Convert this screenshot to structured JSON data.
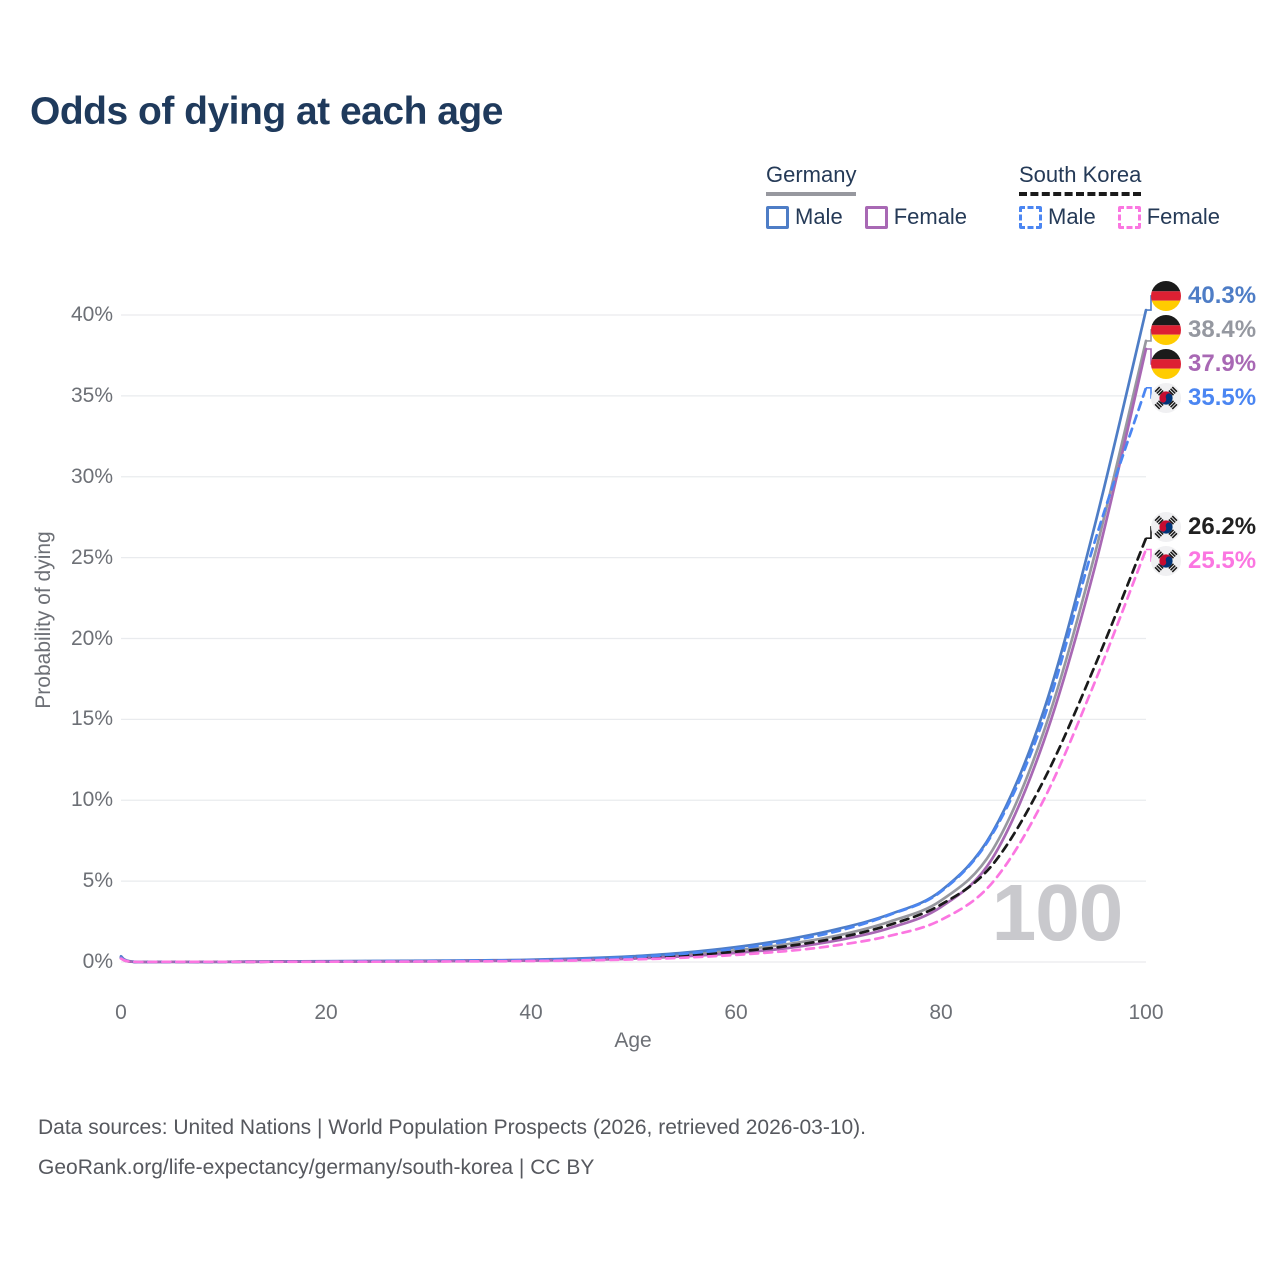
{
  "title": "Odds of dying at each age",
  "legend": {
    "groups": [
      {
        "label": "Germany",
        "line_style": "solid",
        "line_color": "#97989f",
        "items": [
          {
            "label": "Male",
            "color": "#4e7dc6",
            "dashed": false
          },
          {
            "label": "Female",
            "color": "#a868b4",
            "dashed": false
          }
        ]
      },
      {
        "label": "South Korea",
        "line_style": "dashed",
        "line_color": "#1a1a1a",
        "items": [
          {
            "label": "Male",
            "color": "#4b86f2",
            "dashed": true
          },
          {
            "label": "Female",
            "color": "#fb76e1",
            "dashed": true
          }
        ]
      }
    ]
  },
  "chart_data": {
    "type": "line",
    "title": "Odds of dying at each age",
    "xlabel": "Age",
    "ylabel": "Probability of dying",
    "xlim": [
      0,
      100
    ],
    "ylim": [
      0,
      41
    ],
    "grid": "horizontal",
    "legend_position": "top-right",
    "watermark": "100",
    "x_ticks": [
      {
        "value": 0,
        "label": "0"
      },
      {
        "value": 20,
        "label": "20"
      },
      {
        "value": 40,
        "label": "40"
      },
      {
        "value": 60,
        "label": "60"
      },
      {
        "value": 80,
        "label": "80"
      },
      {
        "value": 100,
        "label": "100"
      }
    ],
    "y_ticks": [
      {
        "value": 0,
        "label": "0%"
      },
      {
        "value": 5,
        "label": "5%"
      },
      {
        "value": 10,
        "label": "10%"
      },
      {
        "value": 15,
        "label": "15%"
      },
      {
        "value": 20,
        "label": "20%"
      },
      {
        "value": 25,
        "label": "25%"
      },
      {
        "value": 30,
        "label": "30%"
      },
      {
        "value": 35,
        "label": "35%"
      },
      {
        "value": 40,
        "label": "40%"
      }
    ],
    "x": [
      0,
      1,
      5,
      10,
      15,
      20,
      25,
      30,
      35,
      40,
      45,
      50,
      55,
      60,
      65,
      70,
      75,
      80,
      85,
      90,
      95,
      100
    ],
    "series": [
      {
        "name": "Germany",
        "color": "#97989f",
        "dashed": false,
        "flag_icon": "flag-germany-icon",
        "end_label": "38.4%",
        "end_label_color": "#9598a0",
        "values": [
          0.31,
          0.02,
          0.01,
          0.01,
          0.02,
          0.04,
          0.05,
          0.06,
          0.08,
          0.11,
          0.17,
          0.28,
          0.46,
          0.73,
          1.1,
          1.65,
          2.5,
          3.8,
          6.9,
          14.2,
          25.2,
          38.4
        ]
      },
      {
        "name": "Germany Male",
        "color": "#4e7dc6",
        "dashed": false,
        "flag_icon": "flag-germany-icon",
        "end_label": "40.3%",
        "end_label_color": "#4e7dc6",
        "values": [
          0.35,
          0.03,
          0.01,
          0.01,
          0.03,
          0.05,
          0.06,
          0.08,
          0.1,
          0.14,
          0.22,
          0.36,
          0.58,
          0.92,
          1.4,
          2.05,
          2.95,
          4.4,
          8.0,
          15.5,
          27.0,
          40.3
        ]
      },
      {
        "name": "Germany Female",
        "color": "#a868b4",
        "dashed": false,
        "flag_icon": "flag-germany-icon",
        "end_label": "37.9%",
        "end_label_color": "#a868b4",
        "values": [
          0.28,
          0.02,
          0.01,
          0.01,
          0.02,
          0.02,
          0.03,
          0.04,
          0.06,
          0.08,
          0.13,
          0.21,
          0.35,
          0.56,
          0.86,
          1.35,
          2.1,
          3.4,
          6.4,
          13.6,
          24.4,
          37.9
        ]
      },
      {
        "name": "South Korea",
        "color": "#1a1a1a",
        "dashed": true,
        "flag_icon": "flag-south-korea-icon",
        "end_label": "26.2%",
        "end_label_color": "#212121",
        "values": [
          0.24,
          0.02,
          0.01,
          0.01,
          0.02,
          0.03,
          0.04,
          0.05,
          0.06,
          0.09,
          0.14,
          0.24,
          0.41,
          0.64,
          0.98,
          1.5,
          2.3,
          3.55,
          6.0,
          11.2,
          18.3,
          26.2
        ]
      },
      {
        "name": "South Korea Male",
        "color": "#4b86f2",
        "dashed": true,
        "flag_icon": "flag-south-korea-icon",
        "end_label": "35.5%",
        "end_label_color": "#4b86f2",
        "values": [
          0.26,
          0.02,
          0.01,
          0.01,
          0.02,
          0.03,
          0.05,
          0.06,
          0.08,
          0.11,
          0.17,
          0.3,
          0.52,
          0.82,
          1.28,
          1.92,
          2.92,
          4.35,
          7.9,
          15.0,
          26.0,
          35.5
        ]
      },
      {
        "name": "South Korea Female",
        "color": "#fb76e1",
        "dashed": true,
        "flag_icon": "flag-south-korea-icon",
        "end_label": "25.5%",
        "end_label_color": "#fb76e1",
        "values": [
          0.21,
          0.02,
          0.01,
          0.01,
          0.01,
          0.02,
          0.02,
          0.03,
          0.04,
          0.06,
          0.1,
          0.16,
          0.27,
          0.44,
          0.68,
          1.05,
          1.62,
          2.6,
          4.9,
          10.0,
          17.3,
          25.5
        ]
      }
    ]
  },
  "footer": {
    "line1": "Data sources: United Nations | World Population Prospects (2026, retrieved 2026-03-10).",
    "line2": "GeoRank.org/life-expectancy/germany/south-korea | CC BY"
  }
}
